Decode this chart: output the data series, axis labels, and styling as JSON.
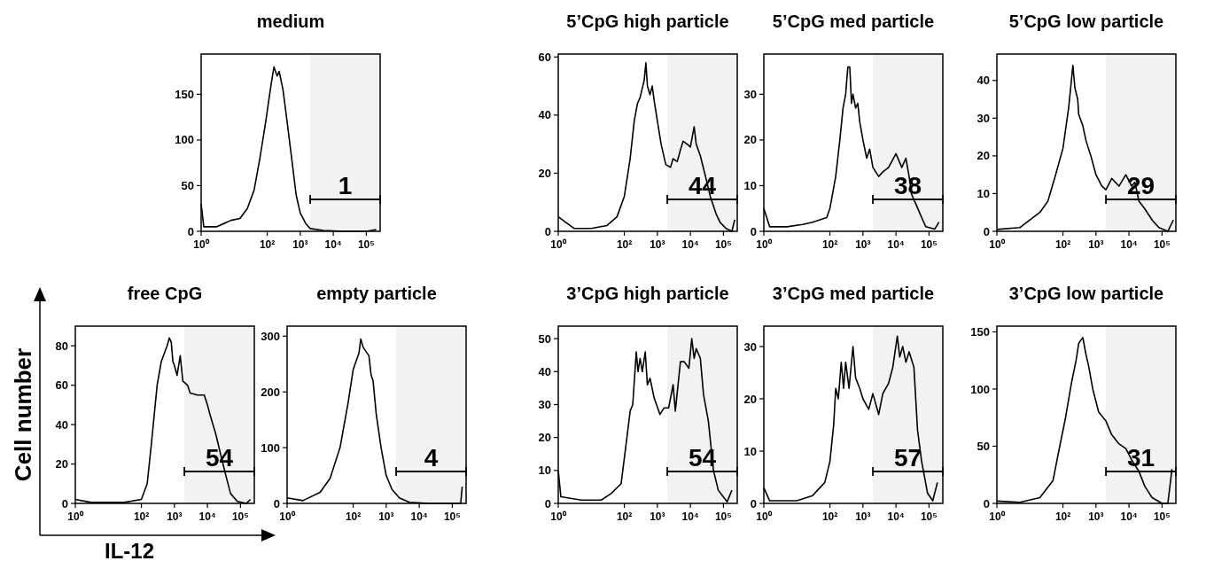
{
  "chart_data": [
    {
      "type": "line",
      "title": "medium",
      "log": "x",
      "xlim": [
        1,
        262144
      ],
      "xticks": [
        {
          "value": 1,
          "label": "10⁰"
        },
        {
          "value": 100,
          "label": "10²"
        },
        {
          "value": 1000,
          "label": "10³"
        },
        {
          "value": 10000,
          "label": "10⁴"
        },
        {
          "value": 100000,
          "label": "10⁵"
        }
      ],
      "ylim": [
        0,
        194
      ],
      "yticks": [
        0,
        50,
        100,
        150
      ],
      "bands": [
        {
          "axis": "x",
          "from": 2000,
          "to": 262144,
          "label": "1"
        }
      ],
      "series": [
        {
          "color": "#000000",
          "x": [
            1,
            1.2,
            3,
            8,
            15,
            25,
            40,
            60,
            90,
            130,
            160,
            200,
            230,
            300,
            400,
            550,
            750,
            1000,
            1500,
            2000,
            5000,
            20000,
            100000,
            200000
          ],
          "values": [
            30,
            5,
            5,
            12,
            14,
            25,
            45,
            80,
            120,
            160,
            180,
            170,
            175,
            155,
            120,
            80,
            40,
            20,
            8,
            3,
            1,
            0,
            0,
            2
          ]
        }
      ]
    },
    {
      "type": "line",
      "title": "5’CpG high particle",
      "log": "x",
      "xlim": [
        1,
        262144
      ],
      "xticks": [
        {
          "value": 1,
          "label": "10⁰"
        },
        {
          "value": 100,
          "label": "10²"
        },
        {
          "value": 1000,
          "label": "10³"
        },
        {
          "value": 10000,
          "label": "10⁴"
        },
        {
          "value": 100000,
          "label": "10⁵"
        }
      ],
      "ylim": [
        0,
        61
      ],
      "yticks": [
        0,
        20,
        40,
        60
      ],
      "bands": [
        {
          "axis": "x",
          "from": 2000,
          "to": 262144,
          "label": "44"
        }
      ],
      "series": [
        {
          "color": "#000000",
          "x": [
            1,
            3,
            10,
            30,
            60,
            100,
            150,
            200,
            250,
            300,
            400,
            450,
            500,
            600,
            700,
            800,
            1000,
            1300,
            1800,
            2500,
            3000,
            4000,
            5000,
            6000,
            8000,
            10000,
            13000,
            15000,
            20000,
            30000,
            40000,
            60000,
            80000,
            120000,
            180000,
            220000
          ],
          "values": [
            5,
            1,
            1,
            2,
            5,
            12,
            25,
            38,
            44,
            46,
            52,
            58,
            50,
            47,
            50,
            45,
            38,
            30,
            23,
            22,
            25,
            24,
            28,
            31,
            30,
            29,
            36,
            30,
            26,
            18,
            12,
            6,
            3,
            1,
            0,
            4
          ]
        }
      ]
    },
    {
      "type": "line",
      "title": "5’CpG med particle",
      "log": "x",
      "xlim": [
        1,
        262144
      ],
      "xticks": [
        {
          "value": 1,
          "label": "10⁰"
        },
        {
          "value": 100,
          "label": "10²"
        },
        {
          "value": 1000,
          "label": "10³"
        },
        {
          "value": 10000,
          "label": "10⁴"
        },
        {
          "value": 100000,
          "label": "10⁵"
        }
      ],
      "ylim": [
        0,
        38.8
      ],
      "yticks": [
        0,
        10,
        20,
        30
      ],
      "bands": [
        {
          "axis": "x",
          "from": 2000,
          "to": 262144,
          "label": "38"
        }
      ],
      "series": [
        {
          "color": "#000000",
          "x": [
            1,
            1.5,
            5,
            15,
            30,
            80,
            100,
            150,
            200,
            250,
            300,
            350,
            400,
            450,
            500,
            600,
            700,
            800,
            1000,
            1300,
            1600,
            2000,
            3000,
            4000,
            6000,
            10000,
            15000,
            20000,
            25000,
            30000,
            40000,
            60000,
            80000,
            150000,
            200000
          ],
          "values": [
            5,
            1,
            1,
            1.5,
            2,
            3,
            5,
            12,
            20,
            27,
            30,
            36,
            36,
            28,
            30,
            27,
            28,
            24,
            20,
            16,
            18,
            14,
            12,
            13,
            14,
            17,
            14,
            16,
            12,
            8,
            6,
            3,
            1,
            0.5,
            2
          ]
        }
      ]
    },
    {
      "type": "line",
      "title": "5’CpG low particle",
      "log": "x",
      "xlim": [
        1,
        262144
      ],
      "xticks": [
        {
          "value": 1,
          "label": "10⁰"
        },
        {
          "value": 100,
          "label": "10²"
        },
        {
          "value": 1000,
          "label": "10³"
        },
        {
          "value": 10000,
          "label": "10⁴"
        },
        {
          "value": 100000,
          "label": "10⁵"
        }
      ],
      "ylim": [
        0,
        47
      ],
      "yticks": [
        0,
        10,
        20,
        30,
        40
      ],
      "bands": [
        {
          "axis": "x",
          "from": 2000,
          "to": 262144,
          "label": "29"
        }
      ],
      "series": [
        {
          "color": "#000000",
          "x": [
            1,
            5,
            10,
            20,
            35,
            60,
            100,
            150,
            200,
            230,
            280,
            300,
            400,
            500,
            700,
            1000,
            1500,
            2000,
            3000,
            5000,
            8000,
            12000,
            15000,
            20000,
            30000,
            50000,
            80000,
            150000,
            220000
          ],
          "values": [
            0.5,
            1,
            3,
            5,
            8,
            15,
            22,
            33,
            44,
            38,
            35,
            31,
            28,
            24,
            20,
            15,
            12,
            11,
            14,
            12,
            15,
            12,
            13,
            8,
            6,
            3,
            1,
            0,
            3
          ]
        }
      ]
    },
    {
      "type": "line",
      "title": "free CpG",
      "xlabel": "IL-12",
      "ylabel": "Cell number",
      "log": "x",
      "xlim": [
        1,
        262144
      ],
      "xticks": [
        {
          "value": 1,
          "label": "10⁰"
        },
        {
          "value": 100,
          "label": "10²"
        },
        {
          "value": 1000,
          "label": "10³"
        },
        {
          "value": 10000,
          "label": "10⁴"
        },
        {
          "value": 100000,
          "label": "10⁵"
        }
      ],
      "ylim": [
        0,
        90
      ],
      "yticks": [
        0,
        20,
        40,
        60,
        80
      ],
      "bands": [
        {
          "axis": "x",
          "from": 2000,
          "to": 262144,
          "label": "54"
        }
      ],
      "series": [
        {
          "color": "#000000",
          "x": [
            1,
            3,
            30,
            100,
            150,
            200,
            300,
            400,
            600,
            700,
            800,
            900,
            1000,
            1200,
            1500,
            1800,
            2500,
            3000,
            5000,
            8000,
            10000,
            12000,
            18000,
            25000,
            35000,
            50000,
            80000,
            150000,
            200000
          ],
          "values": [
            2,
            0.5,
            0.5,
            2,
            10,
            30,
            60,
            72,
            80,
            84,
            82,
            72,
            70,
            65,
            75,
            62,
            60,
            56,
            55,
            55,
            50,
            45,
            35,
            25,
            15,
            5,
            1,
            0,
            2
          ]
        }
      ]
    },
    {
      "type": "line",
      "title": "empty particle",
      "log": "x",
      "xlim": [
        1,
        262144
      ],
      "xticks": [
        {
          "value": 1,
          "label": "10⁰"
        },
        {
          "value": 100,
          "label": "10²"
        },
        {
          "value": 1000,
          "label": "10³"
        },
        {
          "value": 10000,
          "label": "10⁴"
        },
        {
          "value": 100000,
          "label": "10⁵"
        }
      ],
      "ylim": [
        0,
        318
      ],
      "yticks": [
        0,
        100,
        200,
        300
      ],
      "bands": [
        {
          "axis": "x",
          "from": 2000,
          "to": 262144,
          "label": "4"
        }
      ],
      "series": [
        {
          "color": "#000000",
          "x": [
            1,
            3,
            10,
            20,
            40,
            70,
            100,
            150,
            170,
            200,
            300,
            350,
            400,
            500,
            700,
            1000,
            1500,
            2500,
            5000,
            20000,
            180000,
            200000
          ],
          "values": [
            10,
            5,
            20,
            45,
            100,
            180,
            240,
            270,
            295,
            280,
            265,
            230,
            220,
            160,
            100,
            50,
            25,
            10,
            2,
            0,
            0,
            30
          ]
        }
      ]
    },
    {
      "type": "line",
      "title": "3’CpG high particle",
      "log": "x",
      "xlim": [
        1,
        262144
      ],
      "xticks": [
        {
          "value": 1,
          "label": "10⁰"
        },
        {
          "value": 100,
          "label": "10²"
        },
        {
          "value": 1000,
          "label": "10³"
        },
        {
          "value": 10000,
          "label": "10⁴"
        },
        {
          "value": 100000,
          "label": "10⁵"
        }
      ],
      "ylim": [
        0,
        53.8
      ],
      "yticks": [
        0,
        10,
        20,
        30,
        40,
        50
      ],
      "bands": [
        {
          "axis": "x",
          "from": 2000,
          "to": 262144,
          "label": "54"
        }
      ],
      "series": [
        {
          "color": "#000000",
          "x": [
            1,
            1.2,
            5,
            20,
            40,
            80,
            120,
            150,
            180,
            230,
            260,
            300,
            350,
            430,
            500,
            600,
            800,
            1200,
            1600,
            2200,
            3000,
            3500,
            5000,
            6500,
            9000,
            11000,
            13000,
            15000,
            20000,
            25000,
            35000,
            50000,
            70000,
            130000,
            180000
          ],
          "values": [
            10,
            2,
            1,
            1,
            3,
            6,
            20,
            28,
            30,
            46,
            40,
            44,
            40,
            46,
            36,
            38,
            32,
            27,
            29,
            29,
            36,
            28,
            43,
            43,
            41,
            50,
            44,
            47,
            44,
            33,
            25,
            10,
            4,
            0.5,
            4
          ]
        }
      ]
    },
    {
      "type": "line",
      "title": "3’CpG med particle",
      "log": "x",
      "xlim": [
        1,
        262144
      ],
      "xticks": [
        {
          "value": 1,
          "label": "10⁰"
        },
        {
          "value": 100,
          "label": "10²"
        },
        {
          "value": 1000,
          "label": "10³"
        },
        {
          "value": 10000,
          "label": "10⁴"
        },
        {
          "value": 100000,
          "label": "10⁵"
        }
      ],
      "ylim": [
        0,
        33.9
      ],
      "yticks": [
        0,
        10,
        20,
        30
      ],
      "bands": [
        {
          "axis": "x",
          "from": 2000,
          "to": 262144,
          "label": "57"
        }
      ],
      "series": [
        {
          "color": "#000000",
          "x": [
            1,
            1.5,
            10,
            30,
            70,
            100,
            130,
            150,
            180,
            220,
            260,
            300,
            380,
            500,
            600,
            800,
            1000,
            1500,
            2000,
            3000,
            4000,
            6000,
            8000,
            11000,
            13000,
            16000,
            20000,
            25000,
            35000,
            45000,
            60000,
            90000,
            130000,
            180000
          ],
          "values": [
            3,
            0.5,
            0.5,
            1.5,
            4,
            8,
            15,
            22,
            20,
            27,
            22,
            27,
            22,
            30,
            24,
            22,
            20,
            18,
            21,
            17,
            21,
            23,
            26,
            32,
            28,
            30,
            27,
            29,
            26,
            14,
            8,
            2,
            0.5,
            4
          ]
        }
      ]
    },
    {
      "type": "line",
      "title": "3’CpG low particle",
      "log": "x",
      "xlim": [
        1,
        262144
      ],
      "xticks": [
        {
          "value": 1,
          "label": "10⁰"
        },
        {
          "value": 100,
          "label": "10²"
        },
        {
          "value": 1000,
          "label": "10³"
        },
        {
          "value": 10000,
          "label": "10⁴"
        },
        {
          "value": 100000,
          "label": "10⁵"
        }
      ],
      "ylim": [
        0,
        155
      ],
      "yticks": [
        0,
        50,
        100,
        150
      ],
      "bands": [
        {
          "axis": "x",
          "from": 2000,
          "to": 262144,
          "label": "31"
        }
      ],
      "series": [
        {
          "color": "#000000",
          "x": [
            1,
            5,
            20,
            50,
            80,
            120,
            180,
            250,
            300,
            400,
            500,
            600,
            800,
            1200,
            2000,
            3000,
            5000,
            8000,
            12000,
            20000,
            30000,
            50000,
            100000,
            150000,
            200000
          ],
          "values": [
            2,
            1,
            5,
            20,
            50,
            75,
            105,
            125,
            140,
            145,
            130,
            120,
            100,
            80,
            72,
            60,
            52,
            48,
            38,
            28,
            15,
            5,
            0,
            0,
            30
          ]
        }
      ]
    }
  ]
}
